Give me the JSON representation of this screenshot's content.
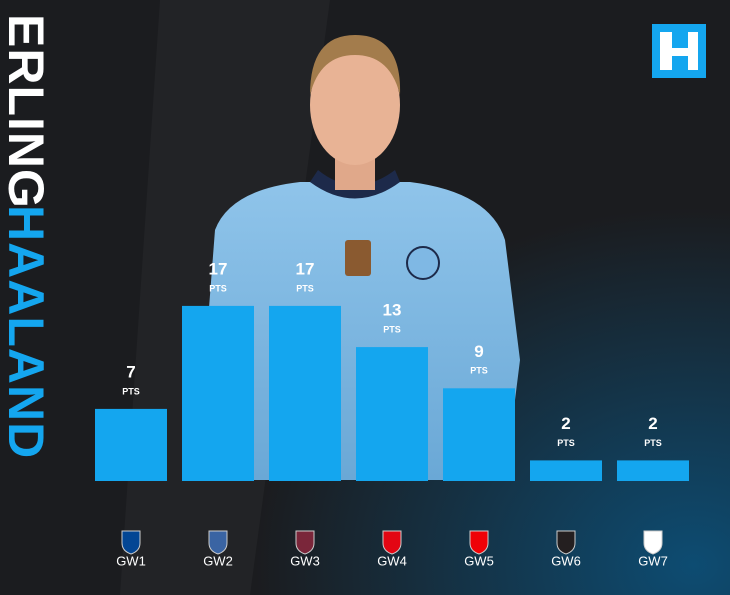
{
  "title_first": "ERLING",
  "title_last": "HAALAND",
  "chart_data": {
    "type": "bar",
    "categories": [
      "GW1",
      "GW2",
      "GW3",
      "GW4",
      "GW5",
      "GW6",
      "GW7"
    ],
    "values": [
      7,
      17,
      17,
      13,
      9,
      2,
      2
    ],
    "value_unit": "PTS",
    "color": "#14a6ef"
  }
}
